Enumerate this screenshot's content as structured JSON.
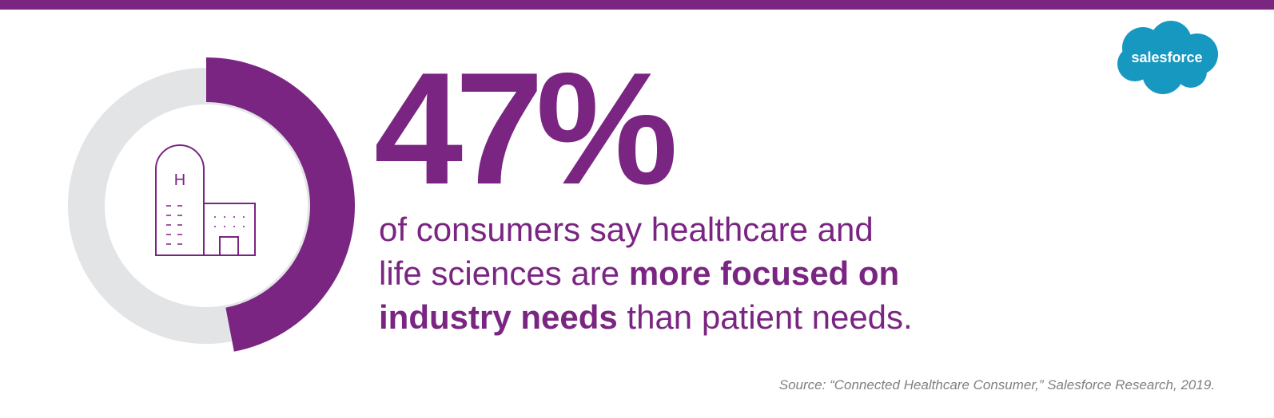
{
  "chart_data": {
    "type": "donut",
    "values": [
      47
    ],
    "value_labels": [
      "47%"
    ],
    "ylim": [
      0,
      100
    ],
    "color": "#7a2582",
    "track_color": "#e3e4e6"
  },
  "description": {
    "lines": [
      [
        "of consumers say healthcare and"
      ],
      [
        "life sciences are ",
        "more focused on"
      ],
      [
        "industry needs",
        " than patient needs."
      ]
    ]
  },
  "source": "Source: “Connected Healthcare Consumer,” Salesforce Research, 2019.",
  "logo": "salesforce",
  "icon_letter": "H"
}
